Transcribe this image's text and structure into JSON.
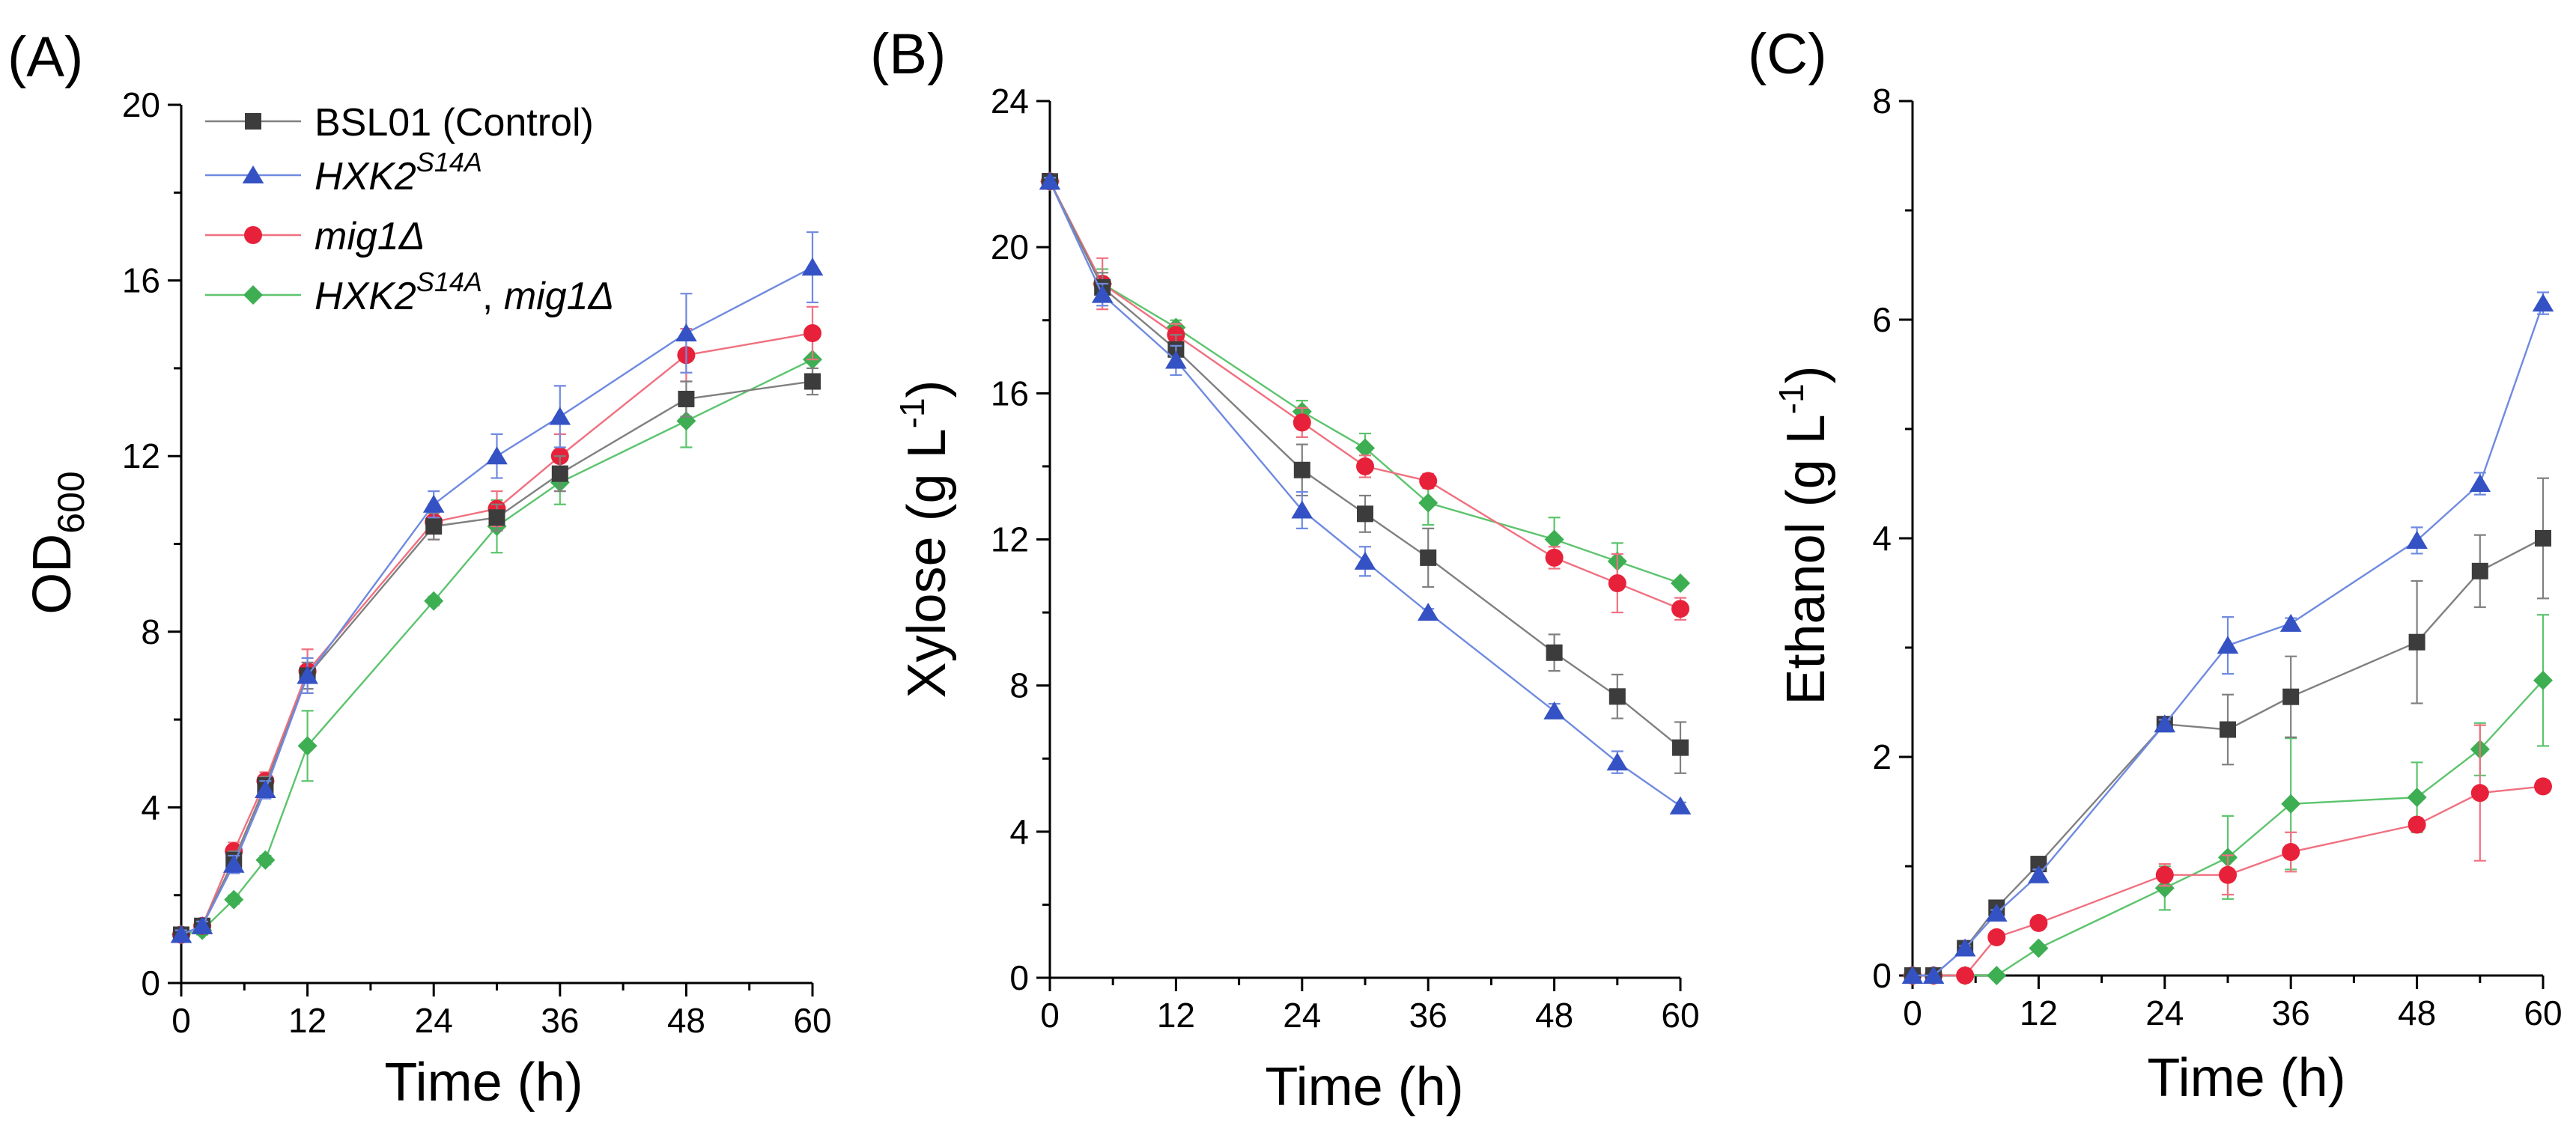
{
  "chart_data": [
    {
      "type": "line",
      "panel_label": "(A)",
      "xlabel": "Time (h)",
      "ylabel_main": "OD",
      "ylabel_sub": "600",
      "xlim": [
        0,
        60
      ],
      "ylim": [
        0,
        20
      ],
      "xticks": [
        0,
        12,
        24,
        36,
        48,
        60
      ],
      "yticks": [
        0,
        4,
        8,
        12,
        16,
        20
      ],
      "legend": "top-left",
      "series": [
        {
          "key": "bsl01",
          "x": [
            0,
            2,
            5,
            8,
            12,
            24,
            30,
            36,
            48,
            60
          ],
          "y": [
            1.1,
            1.3,
            2.8,
            4.5,
            7.0,
            10.4,
            10.6,
            11.6,
            13.3,
            13.7
          ],
          "err": [
            0.1,
            0.1,
            0.2,
            0.2,
            0.3,
            0.3,
            0.3,
            0.4,
            0.4,
            0.3
          ]
        },
        {
          "key": "hxk2",
          "x": [
            0,
            2,
            5,
            8,
            12,
            24,
            30,
            36,
            48,
            60
          ],
          "y": [
            1.1,
            1.3,
            2.7,
            4.4,
            7.0,
            10.9,
            12.0,
            12.9,
            14.8,
            16.3
          ],
          "err": [
            0.1,
            0.1,
            0.2,
            0.2,
            0.4,
            0.3,
            0.5,
            0.7,
            0.9,
            0.8
          ]
        },
        {
          "key": "mig1",
          "x": [
            0,
            2,
            5,
            8,
            12,
            24,
            30,
            36,
            48,
            60
          ],
          "y": [
            1.1,
            1.3,
            3.0,
            4.6,
            7.1,
            10.5,
            10.8,
            12.0,
            14.3,
            14.8
          ],
          "err": [
            0.1,
            0.1,
            0.2,
            0.2,
            0.5,
            0.4,
            0.4,
            0.5,
            0.6,
            0.6
          ]
        },
        {
          "key": "double",
          "x": [
            0,
            2,
            5,
            8,
            12,
            24,
            30,
            36,
            48,
            60
          ],
          "y": [
            1.1,
            1.2,
            1.9,
            2.8,
            5.4,
            8.7,
            10.4,
            11.4,
            12.8,
            14.2
          ],
          "err": [
            0.1,
            0.1,
            0.1,
            0.1,
            0.8,
            0.1,
            0.6,
            0.5,
            0.6,
            0.6
          ]
        }
      ]
    },
    {
      "type": "line",
      "panel_label": "(B)",
      "xlabel": "Time (h)",
      "ylabel_main": "Xylose (g L",
      "ylabel_sup": "-1",
      "ylabel_end": ")",
      "xlim": [
        0,
        60
      ],
      "ylim": [
        0,
        24
      ],
      "xticks": [
        0,
        12,
        24,
        36,
        48,
        60
      ],
      "yticks": [
        0,
        4,
        8,
        12,
        16,
        20,
        24
      ],
      "series": [
        {
          "key": "bsl01",
          "x": [
            0,
            5,
            12,
            24,
            30,
            36,
            48,
            54,
            60
          ],
          "y": [
            21.8,
            18.9,
            17.2,
            13.9,
            12.7,
            11.5,
            8.9,
            7.7,
            6.3
          ],
          "err": [
            0.1,
            0.4,
            0.4,
            0.7,
            0.5,
            0.8,
            0.5,
            0.6,
            0.7
          ]
        },
        {
          "key": "hxk2",
          "x": [
            0,
            5,
            12,
            24,
            30,
            36,
            48,
            54,
            60
          ],
          "y": [
            21.8,
            18.7,
            16.9,
            12.8,
            11.4,
            10.0,
            7.3,
            5.9,
            4.7
          ],
          "err": [
            0.1,
            0.3,
            0.4,
            0.5,
            0.4,
            0.1,
            0.2,
            0.3,
            0.1
          ]
        },
        {
          "key": "mig1",
          "x": [
            0,
            5,
            12,
            24,
            30,
            36,
            48,
            54,
            60
          ],
          "y": [
            21.8,
            19.0,
            17.6,
            15.2,
            14.0,
            13.6,
            11.5,
            10.8,
            10.1
          ],
          "err": [
            0.1,
            0.7,
            0.3,
            0.4,
            0.3,
            0.2,
            0.3,
            0.8,
            0.3
          ]
        },
        {
          "key": "double",
          "x": [
            0,
            5,
            12,
            24,
            30,
            36,
            48,
            54,
            60
          ],
          "y": [
            21.8,
            19.0,
            17.8,
            15.5,
            14.5,
            13.0,
            12.0,
            11.4,
            10.8
          ],
          "err": [
            0.1,
            0.4,
            0.2,
            0.3,
            0.4,
            0.6,
            0.6,
            0.5,
            0.1
          ]
        }
      ]
    },
    {
      "type": "line",
      "panel_label": "(C)",
      "xlabel": "Time (h)",
      "ylabel_main": "Ethanol (g L",
      "ylabel_sup": "-1",
      "ylabel_end": ")",
      "xlim": [
        0,
        60
      ],
      "ylim": [
        0,
        8
      ],
      "xticks": [
        0,
        12,
        24,
        36,
        48,
        60
      ],
      "yticks": [
        0,
        2,
        4,
        6,
        8
      ],
      "series": [
        {
          "key": "bsl01",
          "x": [
            0,
            2,
            5,
            8,
            12,
            24,
            30,
            36,
            48,
            54,
            60
          ],
          "y": [
            0,
            0,
            0.25,
            0.62,
            1.02,
            2.3,
            2.25,
            2.55,
            3.05,
            3.7,
            4.0
          ],
          "err": [
            0,
            0,
            0.02,
            0.03,
            0.05,
            0.06,
            0.32,
            0.37,
            0.56,
            0.33,
            0.55
          ]
        },
        {
          "key": "hxk2",
          "x": [
            0,
            2,
            5,
            8,
            12,
            24,
            30,
            36,
            48,
            54,
            60
          ],
          "y": [
            0,
            0,
            0.25,
            0.57,
            0.92,
            2.3,
            3.02,
            3.22,
            3.98,
            4.5,
            6.15
          ],
          "err": [
            0,
            0,
            0.02,
            0.03,
            0.05,
            0.04,
            0.26,
            0.05,
            0.12,
            0.1,
            0.1
          ]
        },
        {
          "key": "mig1",
          "x": [
            0,
            2,
            5,
            8,
            12,
            24,
            30,
            36,
            48,
            54,
            60
          ],
          "y": [
            0,
            0,
            0,
            0.35,
            0.48,
            0.92,
            0.92,
            1.13,
            1.38,
            1.67,
            1.73
          ],
          "err": [
            0,
            0,
            0,
            0.04,
            0.05,
            0.1,
            0.18,
            0.18,
            0.06,
            0.62,
            0.05
          ]
        },
        {
          "key": "double",
          "x": [
            0,
            2,
            5,
            8,
            12,
            24,
            30,
            36,
            48,
            54,
            60
          ],
          "y": [
            0,
            0,
            0,
            0,
            0.25,
            0.8,
            1.08,
            1.57,
            1.63,
            2.07,
            2.7
          ],
          "err": [
            0,
            0,
            0,
            0,
            0.02,
            0.2,
            0.38,
            0.6,
            0.32,
            0.24,
            0.6
          ]
        }
      ]
    }
  ],
  "legend": {
    "entries": [
      {
        "key": "bsl01",
        "label": "BSL01 (Control)"
      },
      {
        "key": "hxk2",
        "label_main": "HXK2",
        "label_sup": "S14A"
      },
      {
        "key": "mig1",
        "label": "mig1Δ"
      },
      {
        "key": "double",
        "label_main": "HXK2",
        "label_sup": "S14A",
        "label_rest": ", ",
        "label_end": "mig1Δ"
      }
    ]
  },
  "styles": {
    "bsl01": {
      "color": "#3c3c3c",
      "marker": "square"
    },
    "hxk2": {
      "color": "#3452c4",
      "marker": "triangle"
    },
    "mig1": {
      "color": "#e8213a",
      "marker": "circle"
    },
    "double": {
      "color": "#3dae52",
      "marker": "diamond"
    }
  },
  "line_colors": {
    "bsl01": "#808080",
    "hxk2": "#6f8ae0",
    "mig1": "#f07080",
    "double": "#5cc46d"
  }
}
